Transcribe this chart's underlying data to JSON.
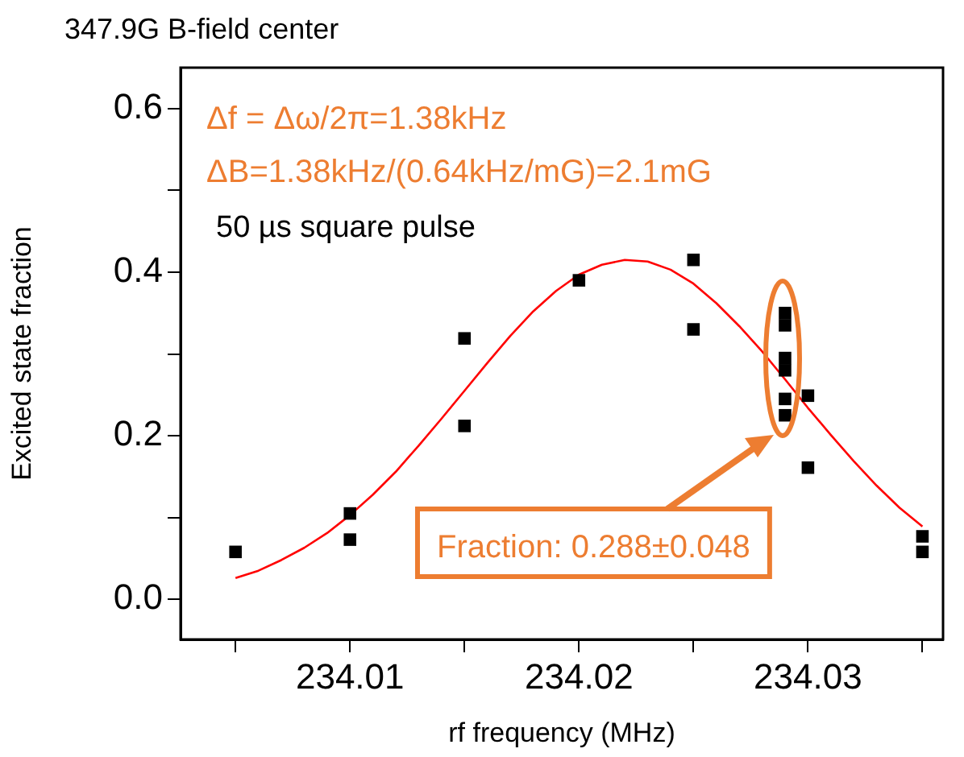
{
  "chart_data": {
    "type": "scatter",
    "title": "347.9G B-field center",
    "xlabel": "rf frequency (MHz)",
    "ylabel": "Excited state fraction",
    "annotations": [
      "Δf = Δω/2π=1.38kHz",
      "ΔB=1.38kHz/(0.64kHz/mG)=2.1mG",
      "50 µs square pulse",
      "Fraction: 0.288±0.048"
    ],
    "series": [
      {
        "type": "scatter",
        "color": "#000000",
        "marker": "square",
        "x": [
          234.005,
          234.01,
          234.01,
          234.015,
          234.015,
          234.02,
          234.025,
          234.025,
          234.029,
          234.029,
          234.029,
          234.029,
          234.029,
          234.029,
          234.03,
          234.03,
          234.035,
          234.035
        ],
        "values": [
          0.058,
          0.105,
          0.073,
          0.319,
          0.212,
          0.39,
          0.415,
          0.33,
          0.35,
          0.335,
          0.295,
          0.28,
          0.245,
          0.225,
          0.249,
          0.161,
          0.077,
          0.058
        ]
      },
      {
        "type": "line",
        "color": "#ff0000",
        "marker": "none",
        "x": [
          234.005,
          234.006,
          234.007,
          234.008,
          234.009,
          234.01,
          234.011,
          234.012,
          234.013,
          234.014,
          234.015,
          234.016,
          234.017,
          234.018,
          234.019,
          234.02,
          234.021,
          234.022,
          234.023,
          234.024,
          234.025,
          234.026,
          234.027,
          234.028,
          234.029,
          234.03,
          234.031,
          234.032,
          234.033,
          234.034,
          234.035
        ],
        "values": [
          0.026,
          0.035,
          0.048,
          0.063,
          0.081,
          0.103,
          0.128,
          0.156,
          0.188,
          0.221,
          0.255,
          0.289,
          0.322,
          0.352,
          0.377,
          0.397,
          0.409,
          0.415,
          0.413,
          0.403,
          0.386,
          0.362,
          0.334,
          0.303,
          0.269,
          0.234,
          0.201,
          0.169,
          0.139,
          0.112,
          0.089
        ]
      }
    ],
    "xlim": [
      234.0026,
      234.0359
    ],
    "xticks": [
      {
        "value": 234.005,
        "label": null
      },
      234.01,
      {
        "value": 234.015,
        "label": null
      },
      234.02,
      {
        "value": 234.025,
        "label": null
      },
      234.03,
      {
        "value": 234.035,
        "label": null
      }
    ],
    "ylim": [
      -0.049,
      0.65
    ],
    "yticks": [
      {
        "value": 0,
        "label": "0.0"
      },
      {
        "value": 0.1,
        "label": null
      },
      {
        "value": 0.2,
        "label": "0.2"
      },
      {
        "value": 0.3,
        "label": null
      },
      {
        "value": 0.4,
        "label": "0.4"
      },
      {
        "value": 0.5,
        "label": null
      },
      {
        "value": 0.6,
        "label": "0.6"
      }
    ],
    "grid": false,
    "legend": false
  }
}
